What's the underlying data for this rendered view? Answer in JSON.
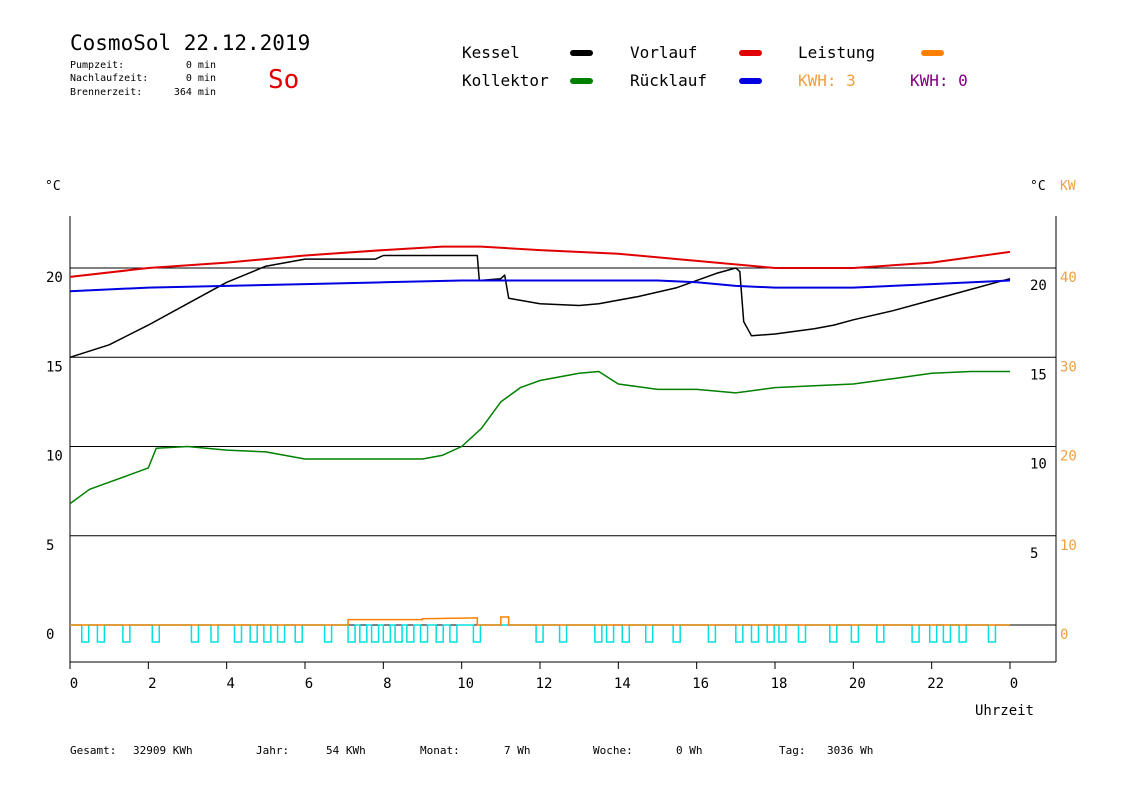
{
  "header": {
    "title": "CosmoSol 22.12.2019",
    "day": "So",
    "pump_label": "Pumpzeit:",
    "pump_value": "0 min",
    "nachlauf_label": "Nachlaufzeit:",
    "nachlauf_value": "0 min",
    "brenner_label": "Brennerzeit:",
    "brenner_value": "364 min"
  },
  "legend": {
    "kessel": "Kessel",
    "vorlauf": "Vorlauf",
    "leistung": "Leistung",
    "kollektor": "Kollektor",
    "ruecklauf": "Rücklauf",
    "kwh1": "KWH: 3",
    "kwh2": "KWH: 0"
  },
  "colors": {
    "kessel": "#000000",
    "vorlauf": "#e00000",
    "leistung": "#ff8000",
    "kollektor": "#008000",
    "ruecklauf": "#0000e0",
    "kwh1": "#f0a040",
    "kwh2": "#800080",
    "pump": "#00e0e0",
    "axis_kw": "#f0a040"
  },
  "footer": {
    "gesamt_label": "Gesamt:",
    "gesamt_value": "32909 KWh",
    "jahr_label": "Jahr:",
    "jahr_value": "54 KWh",
    "monat_label": "Monat:",
    "monat_value": "7 Wh",
    "woche_label": "Woche:",
    "woche_value": "0 Wh",
    "tag_label": "Tag:",
    "tag_value": "3036 Wh"
  },
  "chart_data": {
    "type": "line",
    "xlabel": "Uhrzeit",
    "y_left_unit": "°C",
    "y_right_units": [
      "°C",
      "KW"
    ],
    "x_ticks": [
      "0",
      "2",
      "4",
      "6",
      "8",
      "10",
      "12",
      "14",
      "16",
      "18",
      "20",
      "22",
      "0"
    ],
    "y_left_ticks": [
      "0",
      "5",
      "10",
      "15",
      "20"
    ],
    "y_right_c_ticks": [
      "5",
      "10",
      "15",
      "20"
    ],
    "y_right_kw_ticks": [
      "0",
      "10",
      "20",
      "30",
      "40"
    ],
    "xlim": [
      0,
      24
    ],
    "ylim": [
      -2,
      22.5
    ],
    "grid": true,
    "series": [
      {
        "name": "Kessel",
        "color_key": "kessel",
        "points": [
          [
            0,
            15.0
          ],
          [
            1,
            15.7
          ],
          [
            2,
            16.8
          ],
          [
            3,
            18.0
          ],
          [
            4,
            19.2
          ],
          [
            5,
            20.1
          ],
          [
            6,
            20.5
          ],
          [
            7.8,
            20.5
          ],
          [
            8,
            20.7
          ],
          [
            10.4,
            20.7
          ],
          [
            10.45,
            19.3
          ],
          [
            11,
            19.4
          ],
          [
            11.1,
            19.6
          ],
          [
            11.2,
            18.3
          ],
          [
            12,
            18.0
          ],
          [
            13,
            17.9
          ],
          [
            13.5,
            18.0
          ],
          [
            14.5,
            18.4
          ],
          [
            15.5,
            18.9
          ],
          [
            16.5,
            19.7
          ],
          [
            17,
            20.0
          ],
          [
            17.1,
            19.8
          ],
          [
            17.2,
            17.0
          ],
          [
            17.4,
            16.2
          ],
          [
            18,
            16.3
          ],
          [
            19,
            16.6
          ],
          [
            19.5,
            16.8
          ],
          [
            20,
            17.1
          ],
          [
            21,
            17.6
          ],
          [
            22,
            18.2
          ],
          [
            23,
            18.8
          ],
          [
            24,
            19.4
          ]
        ]
      },
      {
        "name": "Vorlauf",
        "color_key": "vorlauf",
        "points": [
          [
            0,
            19.5
          ],
          [
            2,
            20.0
          ],
          [
            4,
            20.3
          ],
          [
            6,
            20.7
          ],
          [
            8,
            21.0
          ],
          [
            9.5,
            21.2
          ],
          [
            10.5,
            21.2
          ],
          [
            12,
            21.0
          ],
          [
            14,
            20.8
          ],
          [
            16,
            20.4
          ],
          [
            18,
            20.0
          ],
          [
            20,
            20.0
          ],
          [
            22,
            20.3
          ],
          [
            24,
            20.9
          ]
        ]
      },
      {
        "name": "Rücklauf",
        "color_key": "ruecklauf",
        "points": [
          [
            0,
            18.7
          ],
          [
            2,
            18.9
          ],
          [
            4,
            19.0
          ],
          [
            6,
            19.1
          ],
          [
            8,
            19.2
          ],
          [
            10,
            19.3
          ],
          [
            12,
            19.3
          ],
          [
            14,
            19.3
          ],
          [
            15,
            19.3
          ],
          [
            16,
            19.2
          ],
          [
            17,
            19.0
          ],
          [
            18,
            18.9
          ],
          [
            19,
            18.9
          ],
          [
            20,
            18.9
          ],
          [
            22,
            19.1
          ],
          [
            24,
            19.3
          ]
        ]
      },
      {
        "name": "Kollektor",
        "color_key": "kollektor",
        "points": [
          [
            0,
            6.8
          ],
          [
            0.5,
            7.6
          ],
          [
            1,
            8.0
          ],
          [
            1.5,
            8.4
          ],
          [
            2,
            8.8
          ],
          [
            2.2,
            9.9
          ],
          [
            3,
            10.0
          ],
          [
            4,
            9.8
          ],
          [
            5,
            9.7
          ],
          [
            6,
            9.3
          ],
          [
            7,
            9.3
          ],
          [
            8,
            9.3
          ],
          [
            9,
            9.3
          ],
          [
            9.5,
            9.5
          ],
          [
            10,
            10.0
          ],
          [
            10.5,
            11.0
          ],
          [
            11,
            12.5
          ],
          [
            11.5,
            13.3
          ],
          [
            12,
            13.7
          ],
          [
            13,
            14.1
          ],
          [
            13.5,
            14.2
          ],
          [
            14,
            13.5
          ],
          [
            15,
            13.2
          ],
          [
            16,
            13.2
          ],
          [
            17,
            13.0
          ],
          [
            18,
            13.3
          ],
          [
            19,
            13.4
          ],
          [
            20,
            13.5
          ],
          [
            21,
            13.8
          ],
          [
            22,
            14.1
          ],
          [
            23,
            14.2
          ],
          [
            24,
            14.2
          ]
        ]
      }
    ],
    "leistung_kw": [
      [
        0,
        0
      ],
      [
        7.1,
        0
      ],
      [
        7.1,
        0.6
      ],
      [
        9,
        0.6
      ],
      [
        9,
        0.7
      ],
      [
        10.4,
        0.8
      ],
      [
        10.4,
        0
      ],
      [
        11.0,
        0
      ],
      [
        11.0,
        0.9
      ],
      [
        11.2,
        0.9
      ],
      [
        11.2,
        0
      ],
      [
        24,
        0
      ]
    ],
    "pump_on_hours": [
      0.3,
      0.7,
      1.35,
      2.1,
      3.1,
      3.6,
      4.2,
      4.6,
      4.95,
      5.3,
      5.75,
      6.5,
      7.1,
      7.4,
      7.7,
      8.0,
      8.3,
      8.6,
      8.95,
      9.35,
      9.7,
      10.3,
      11.9,
      12.5,
      13.4,
      13.7,
      14.1,
      14.7,
      15.4,
      16.3,
      17.0,
      17.4,
      17.8,
      18.1,
      18.6,
      19.4,
      19.95,
      20.6,
      21.5,
      21.95,
      22.3,
      22.7,
      23.45
    ]
  }
}
